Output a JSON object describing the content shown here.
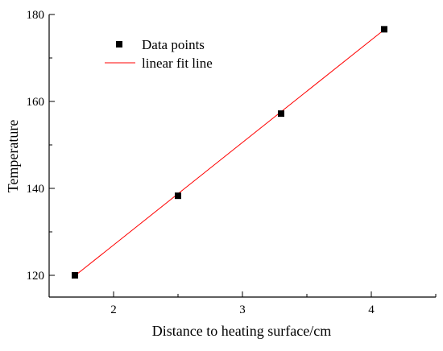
{
  "chart_data": {
    "type": "scatter",
    "title": "",
    "xlabel": "Distance to heating surface/cm",
    "ylabel": "Temperature",
    "xlim": [
      1.5,
      4.5
    ],
    "ylim": [
      115,
      180
    ],
    "x_ticks": [
      2,
      3,
      4
    ],
    "y_ticks": [
      120,
      140,
      160,
      180
    ],
    "grid": false,
    "legend": "top-left",
    "series": [
      {
        "name": "Data points",
        "kind": "scatter",
        "marker": "square",
        "color": "#000000",
        "x": [
          1.7,
          2.5,
          3.3,
          4.1
        ],
        "y": [
          120.0,
          138.3,
          157.2,
          176.6
        ]
      },
      {
        "name": "linear fit line",
        "kind": "line",
        "color": "#ff0000",
        "x": [
          1.7,
          4.1
        ],
        "y": [
          119.9,
          176.5
        ]
      }
    ]
  }
}
